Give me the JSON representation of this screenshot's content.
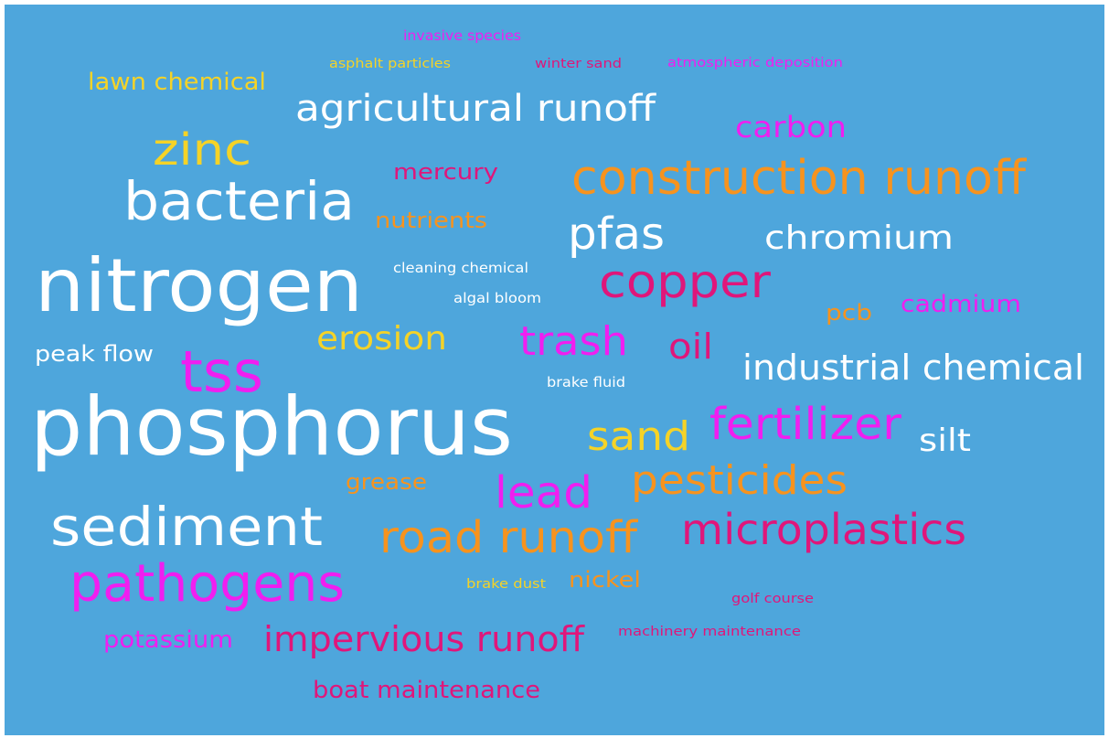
{
  "words": [
    {
      "text": "invasive species",
      "color": "#f01ef0"
    },
    {
      "text": "asphalt particles",
      "color": "#f5d327"
    },
    {
      "text": "winter sand",
      "color": "#e0167a"
    },
    {
      "text": "atmospheric deposition",
      "color": "#f01ef0"
    },
    {
      "text": "lawn chemical",
      "color": "#f5d327"
    },
    {
      "text": "agricultural runoff",
      "color": "#ffffff"
    },
    {
      "text": "carbon",
      "color": "#f01ef0"
    },
    {
      "text": "zinc",
      "color": "#f5d327"
    },
    {
      "text": "mercury",
      "color": "#e0167a"
    },
    {
      "text": "construction runoff",
      "color": "#f7931e"
    },
    {
      "text": "bacteria",
      "color": "#ffffff"
    },
    {
      "text": "nutrients",
      "color": "#f7931e"
    },
    {
      "text": "pfas",
      "color": "#ffffff"
    },
    {
      "text": "chromium",
      "color": "#ffffff"
    },
    {
      "text": "cleaning chemical",
      "color": "#ffffff"
    },
    {
      "text": "nitrogen",
      "color": "#ffffff"
    },
    {
      "text": "copper",
      "color": "#e0167a"
    },
    {
      "text": "algal bloom",
      "color": "#ffffff"
    },
    {
      "text": "pcb",
      "color": "#f7931e"
    },
    {
      "text": "cadmium",
      "color": "#f01ef0"
    },
    {
      "text": "erosion",
      "color": "#f5d327"
    },
    {
      "text": "trash",
      "color": "#f01ef0"
    },
    {
      "text": "oil",
      "color": "#e0167a"
    },
    {
      "text": "peak flow",
      "color": "#ffffff"
    },
    {
      "text": "tss",
      "color": "#f01ef0"
    },
    {
      "text": "industrial chemical",
      "color": "#ffffff"
    },
    {
      "text": "brake fluid",
      "color": "#ffffff"
    },
    {
      "text": "phosphorus",
      "color": "#ffffff"
    },
    {
      "text": "sand",
      "color": "#f5d327"
    },
    {
      "text": "fertilizer",
      "color": "#f01ef0"
    },
    {
      "text": "silt",
      "color": "#ffffff"
    },
    {
      "text": "grease",
      "color": "#f7931e"
    },
    {
      "text": "lead",
      "color": "#f01ef0"
    },
    {
      "text": "pesticides",
      "color": "#f7931e"
    },
    {
      "text": "sediment",
      "color": "#ffffff"
    },
    {
      "text": "road runoff",
      "color": "#f7931e"
    },
    {
      "text": "microplastics",
      "color": "#e0167a"
    },
    {
      "text": "pathogens",
      "color": "#f01ef0"
    },
    {
      "text": "brake dust",
      "color": "#f5d327"
    },
    {
      "text": "nickel",
      "color": "#f7931e"
    },
    {
      "text": "golf course",
      "color": "#e0167a"
    },
    {
      "text": "potassium",
      "color": "#f01ef0"
    },
    {
      "text": "impervious runoff",
      "color": "#e0167a"
    },
    {
      "text": "machinery maintenance",
      "color": "#e0167a"
    },
    {
      "text": "boat maintenance",
      "color": "#e0167a"
    }
  ]
}
